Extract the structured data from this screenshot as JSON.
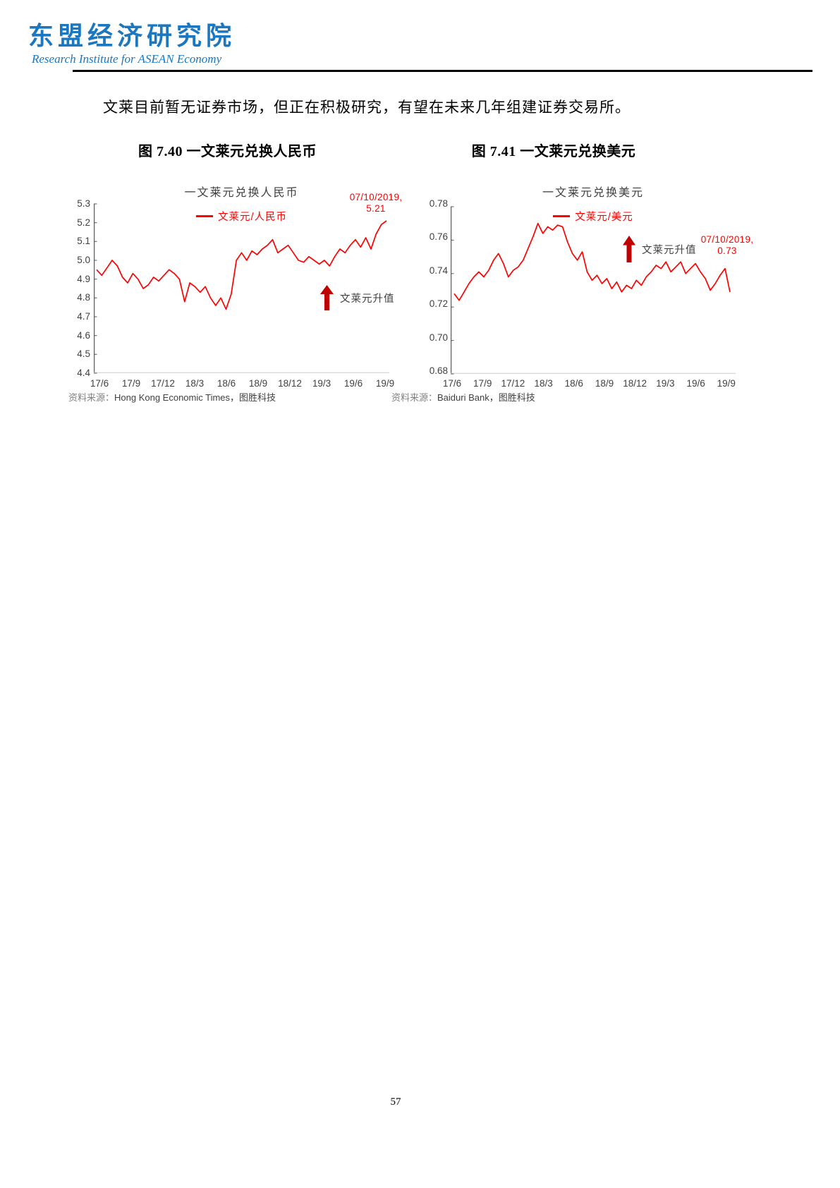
{
  "header": {
    "logo_title": "东盟经济研究院",
    "logo_subtitle": "Research Institute for ASEAN Economy"
  },
  "body": {
    "paragraph": "文莱目前暂无证券市场，但正在积极研究，有望在未来几年组建证券交易所。"
  },
  "page": {
    "number": "57"
  },
  "colors": {
    "brand": "#1a77c0",
    "line_red": "#ff0000",
    "arrow_red": "#c00000",
    "axis_dark": "#595959",
    "axis_light": "#d9d9d9",
    "tick_text": "#404040"
  },
  "chart_data": [
    {
      "type": "line",
      "caption": "图 7.40  一文莱元兑换人民币",
      "title": "一文莱元兑换人民币",
      "legend": "文莱元/人民币",
      "line_color": "#ff0000",
      "grid": false,
      "legend_position": "top",
      "x_range": [
        "2017/6",
        "2019/10"
      ],
      "x_tick_labels": [
        "17/6",
        "17/9",
        "17/12",
        "18/3",
        "18/6",
        "18/9",
        "18/12",
        "19/3",
        "19/6",
        "19/9"
      ],
      "ylim": [
        4.4,
        5.3
      ],
      "y_tick_labels": [
        "5.3",
        "5.2",
        "5.1",
        "5.0",
        "4.9",
        "4.8",
        "4.7",
        "4.6",
        "4.5",
        "4.4"
      ],
      "values": [
        4.95,
        4.92,
        4.96,
        5.0,
        4.97,
        4.91,
        4.88,
        4.93,
        4.9,
        4.85,
        4.87,
        4.91,
        4.89,
        4.92,
        4.95,
        4.93,
        4.9,
        4.78,
        4.88,
        4.86,
        4.83,
        4.86,
        4.8,
        4.76,
        4.8,
        4.74,
        4.82,
        5.0,
        5.04,
        5.0,
        5.05,
        5.03,
        5.06,
        5.08,
        5.11,
        5.04,
        5.06,
        5.08,
        5.04,
        5.0,
        4.99,
        5.02,
        5.0,
        4.98,
        5.0,
        4.97,
        5.02,
        5.06,
        5.04,
        5.08,
        5.11,
        5.07,
        5.12,
        5.06,
        5.14,
        5.19,
        5.21
      ],
      "annotation": {
        "line1": "07/10/2019,",
        "line2": "5.21",
        "date": "07/10/2019",
        "value": 5.21
      },
      "arrow_label": "文莱元升值",
      "source_prefix": "资料来源：",
      "source": "Hong Kong Economic Times，图胜科技"
    },
    {
      "type": "line",
      "caption": "图 7.41  一文莱元兑换美元",
      "title": "一文莱元兑换美元",
      "legend": "文莱元/美元",
      "line_color": "#ff0000",
      "grid": false,
      "legend_position": "top",
      "x_range": [
        "2017/6",
        "2019/10"
      ],
      "x_tick_labels": [
        "17/6",
        "17/9",
        "17/12",
        "18/3",
        "18/6",
        "18/9",
        "18/12",
        "19/3",
        "19/6",
        "19/9"
      ],
      "ylim": [
        0.68,
        0.78
      ],
      "y_tick_labels": [
        "0.78",
        "0.76",
        "0.74",
        "0.72",
        "0.70",
        "0.68"
      ],
      "values": [
        0.728,
        0.724,
        0.729,
        0.734,
        0.738,
        0.741,
        0.738,
        0.742,
        0.748,
        0.752,
        0.746,
        0.738,
        0.742,
        0.744,
        0.748,
        0.755,
        0.762,
        0.77,
        0.764,
        0.768,
        0.766,
        0.769,
        0.768,
        0.759,
        0.752,
        0.748,
        0.753,
        0.741,
        0.736,
        0.739,
        0.734,
        0.737,
        0.731,
        0.735,
        0.729,
        0.733,
        0.731,
        0.736,
        0.733,
        0.738,
        0.741,
        0.745,
        0.743,
        0.747,
        0.741,
        0.744,
        0.747,
        0.74,
        0.743,
        0.746,
        0.741,
        0.737,
        0.73,
        0.734,
        0.739,
        0.743,
        0.729
      ],
      "annotation": {
        "line1": "07/10/2019,",
        "line2": "0.73",
        "date": "07/10/2019",
        "value": 0.73
      },
      "arrow_label": "文莱元升值",
      "source_prefix": "资料来源：",
      "source": "Baiduri Bank，图胜科技"
    }
  ]
}
